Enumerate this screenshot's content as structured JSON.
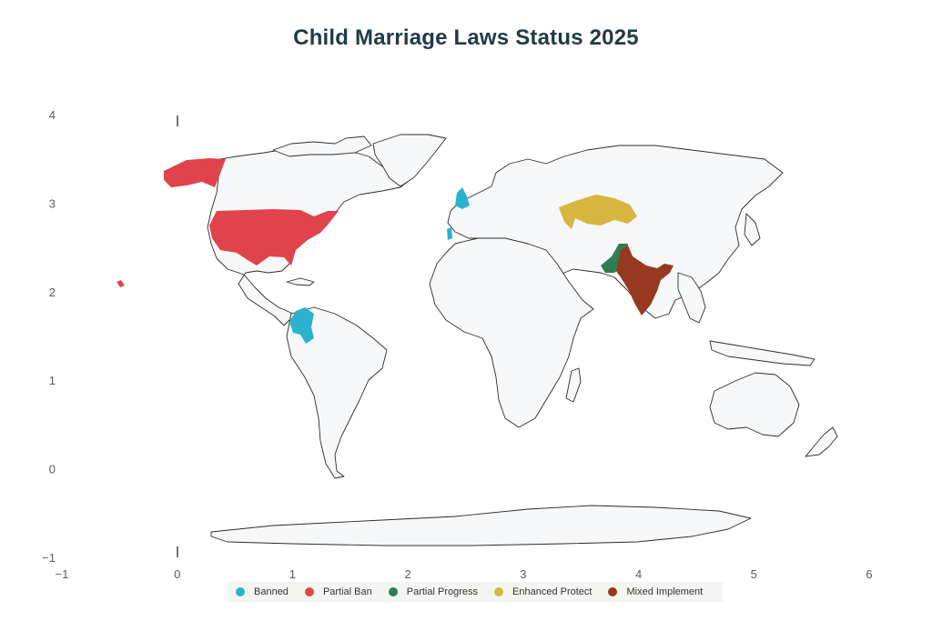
{
  "chart_data": {
    "type": "choropleth-map",
    "title": "Child Marriage Laws Status 2025",
    "x_ticks": [
      "−1",
      "0",
      "1",
      "2",
      "3",
      "4",
      "5",
      "6"
    ],
    "y_ticks": [
      "4",
      "3",
      "2",
      "1",
      "0",
      "−1"
    ],
    "xlim": [
      -1,
      6
    ],
    "ylim": [
      -1,
      4
    ],
    "legend_position": "bottom",
    "categories": [
      {
        "key": "banned",
        "label": "Banned",
        "color": "#2ab3cf"
      },
      {
        "key": "partial_ban",
        "label": "Partial Ban",
        "color": "#e0434b"
      },
      {
        "key": "partial_progress",
        "label": "Partial Progress",
        "color": "#2e7d53"
      },
      {
        "key": "enhanced_protect",
        "label": "Enhanced Protect",
        "color": "#d8b440"
      },
      {
        "key": "mixed_implement",
        "label": "Mixed Implement",
        "color": "#96391f"
      }
    ],
    "regions": [
      {
        "country": "United Kingdom",
        "category": "banned"
      },
      {
        "country": "Portugal",
        "category": "banned"
      },
      {
        "country": "Colombia",
        "category": "banned"
      },
      {
        "country": "United States",
        "category": "partial_ban"
      },
      {
        "country": "Pakistan",
        "category": "partial_progress"
      },
      {
        "country": "Kazakhstan",
        "category": "enhanced_protect"
      },
      {
        "country": "India",
        "category": "mixed_implement"
      }
    ],
    "land_color": "#f6f7f8",
    "border_color": "#2b2b2b"
  }
}
